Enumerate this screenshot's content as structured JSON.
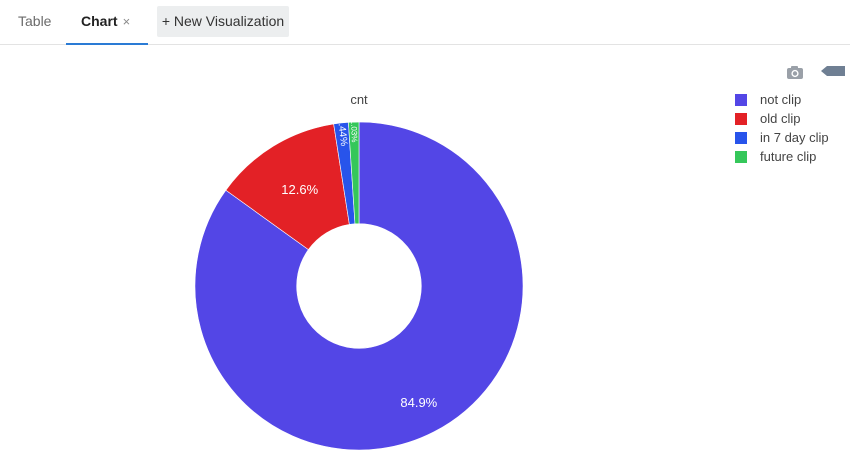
{
  "tabs": {
    "table_label": "Table",
    "chart_label": "Chart",
    "chart_close": "×",
    "new_viz_label": "+ New Visualization"
  },
  "icons": {
    "camera": "camera-icon",
    "collapse": "collapse-arrow-icon"
  },
  "chart_data": {
    "type": "pie",
    "title": "cnt",
    "hole": 0.38,
    "slices": [
      {
        "label": "not clip",
        "value": 84.9,
        "text": "84.9%",
        "color": "#5346e6"
      },
      {
        "label": "old clip",
        "value": 12.6,
        "text": "12.6%",
        "color": "#e32126"
      },
      {
        "label": "in 7 day clip",
        "value": 1.44,
        "text": "1.44%",
        "color": "#2854eb"
      },
      {
        "label": "future clip",
        "value": 1.03,
        "text": "1.03%",
        "color": "#35c75a"
      }
    ],
    "legend_position": "top-right"
  }
}
